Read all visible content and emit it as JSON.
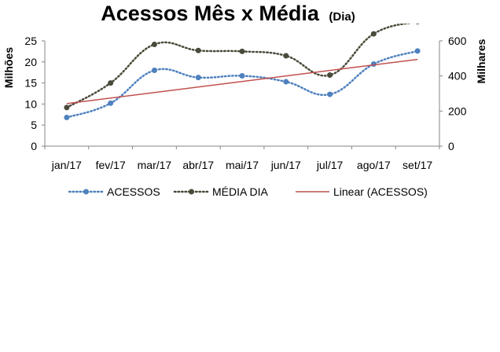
{
  "chart_data": {
    "type": "line",
    "title": "Acessos Mês x Média",
    "subtitle": "(Dia)",
    "categories": [
      "jan/17",
      "fev/17",
      "mar/17",
      "abr/17",
      "mai/17",
      "jun/17",
      "jul/17",
      "ago/17",
      "set/17"
    ],
    "ylabel_left": "Milhões",
    "ylabel_right": "Milhares",
    "ylim_left": [
      0,
      25
    ],
    "ylim_right": [
      0,
      600
    ],
    "yticks_left": [
      "0",
      "5",
      "10",
      "15",
      "20",
      "25"
    ],
    "yticks_right": [
      "0",
      "200",
      "400",
      "600"
    ],
    "grid": false,
    "legend_position": "bottom",
    "series": [
      {
        "name": "ACESSOS",
        "axis": "left",
        "style": "dotted",
        "color": "#4f81bd",
        "values": [
          6.8,
          10.2,
          18.0,
          16.3,
          16.7,
          15.3,
          12.3,
          19.5,
          22.6
        ]
      },
      {
        "name": "MÉDIA DIA",
        "axis": "right",
        "style": "dotted",
        "color": "#4a4a3a",
        "values": [
          220,
          360,
          580,
          545,
          540,
          515,
          405,
          640,
          710
        ]
      },
      {
        "name": "Linear (ACESSOS)",
        "axis": "left",
        "style": "solid",
        "color": "#c0504d",
        "trendline_of": "ACESSOS",
        "values": [
          10.1,
          11.4,
          12.8,
          14.1,
          15.4,
          16.7,
          18.0,
          19.4,
          20.6
        ]
      }
    ]
  }
}
